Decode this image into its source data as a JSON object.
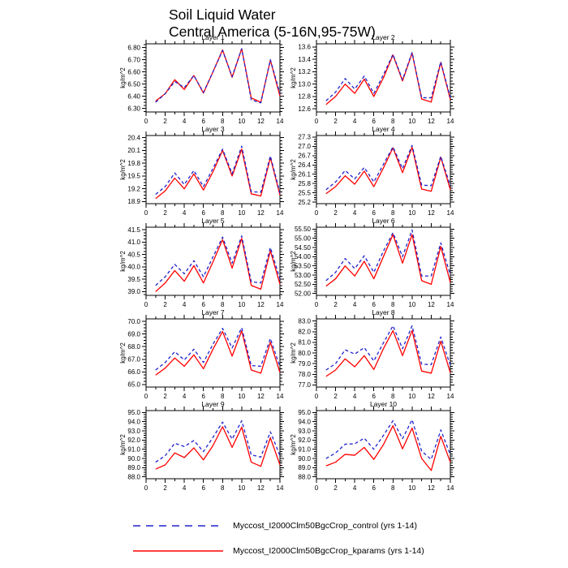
{
  "title": {
    "line1": "Soil Liquid Water",
    "line2": "Central America (5-16N,95-75W)"
  },
  "ylabel": "kg/m^2",
  "colors": {
    "control": "#2222cc",
    "kparams": "#ff0000"
  },
  "legend": [
    {
      "series": "control",
      "style": "dashed",
      "label": "Myccost_I2000Clm50BgcCrop_control (yrs 1-14)"
    },
    {
      "series": "kparams",
      "style": "solid",
      "label": "Myccost_I2000Clm50BgcCrop_kparams (yrs 1-14)"
    }
  ],
  "x_values": [
    1,
    2,
    3,
    4,
    5,
    6,
    7,
    8,
    9,
    10,
    11,
    12,
    13,
    14
  ],
  "xlim": [
    0,
    14
  ],
  "xticks": [
    0,
    2,
    4,
    6,
    8,
    10,
    12,
    14
  ],
  "chart_data": [
    {
      "type": "line",
      "title": "Layer 1",
      "ylabel": "kg/m^2",
      "ylim": [
        6.27,
        6.83
      ],
      "ytick_labels": [
        "6.30",
        "6.40",
        "6.50",
        "6.60",
        "6.70",
        "6.80"
      ],
      "series": [
        {
          "name": "control",
          "values": [
            6.35,
            6.42,
            6.52,
            6.47,
            6.57,
            6.43,
            6.6,
            6.775,
            6.56,
            6.79,
            6.37,
            6.345,
            6.7,
            6.42
          ]
        },
        {
          "name": "kparams",
          "values": [
            6.36,
            6.42,
            6.535,
            6.455,
            6.57,
            6.425,
            6.6,
            6.78,
            6.555,
            6.79,
            6.385,
            6.35,
            6.695,
            6.4
          ]
        }
      ]
    },
    {
      "type": "line",
      "title": "Layer 2",
      "ylabel": "kg/m^2",
      "ylim": [
        12.55,
        13.65
      ],
      "ytick_labels": [
        "12.6",
        "12.8",
        "13.0",
        "13.2",
        "13.4",
        "13.6"
      ],
      "series": [
        {
          "name": "control",
          "values": [
            12.73,
            12.87,
            13.09,
            12.92,
            13.13,
            12.85,
            13.15,
            13.48,
            13.07,
            13.51,
            12.78,
            12.78,
            13.36,
            12.78
          ]
        },
        {
          "name": "kparams",
          "values": [
            12.67,
            12.8,
            13.0,
            12.85,
            13.08,
            12.8,
            13.1,
            13.47,
            13.05,
            13.5,
            12.76,
            12.71,
            13.35,
            12.75
          ]
        }
      ]
    },
    {
      "type": "line",
      "title": "Layer 3",
      "ylabel": "kg/m^2",
      "ylim": [
        18.85,
        20.45
      ],
      "ytick_labels": [
        "18.9",
        "19.2",
        "19.5",
        "19.8",
        "20.1",
        "20.4"
      ],
      "series": [
        {
          "name": "control",
          "values": [
            19.07,
            19.25,
            19.57,
            19.3,
            19.63,
            19.25,
            19.68,
            20.13,
            19.55,
            20.2,
            19.13,
            19.12,
            19.97,
            19.1
          ]
        },
        {
          "name": "kparams",
          "values": [
            18.97,
            19.15,
            19.45,
            19.2,
            19.55,
            19.17,
            19.6,
            20.1,
            19.5,
            20.13,
            19.08,
            19.03,
            19.93,
            19.05
          ]
        }
      ]
    },
    {
      "type": "line",
      "title": "Layer 4",
      "ylabel": "kg/m^2",
      "ylim": [
        25.15,
        27.35
      ],
      "ytick_labels": [
        "25.2",
        "25.5",
        "25.8",
        "26.1",
        "26.4",
        "26.7",
        "27.0",
        "27.3"
      ],
      "series": [
        {
          "name": "control",
          "values": [
            25.6,
            25.85,
            26.22,
            25.95,
            26.32,
            25.85,
            26.42,
            26.98,
            26.28,
            27.03,
            25.75,
            25.73,
            26.68,
            25.72
          ]
        },
        {
          "name": "kparams",
          "values": [
            25.47,
            25.7,
            26.05,
            25.78,
            26.2,
            25.7,
            26.3,
            26.95,
            26.15,
            26.97,
            25.62,
            25.55,
            26.65,
            25.6
          ]
        }
      ]
    },
    {
      "type": "line",
      "title": "Layer 5",
      "ylabel": "kg/m^2",
      "ylim": [
        38.85,
        41.6
      ],
      "ytick_labels": [
        "39.0",
        "39.5",
        "40.0",
        "40.5",
        "41.0",
        "41.5"
      ],
      "series": [
        {
          "name": "control",
          "values": [
            39.25,
            39.6,
            40.1,
            39.72,
            40.25,
            39.6,
            40.4,
            41.2,
            40.15,
            41.25,
            39.4,
            39.35,
            40.78,
            39.5
          ]
        },
        {
          "name": "kparams",
          "values": [
            39.0,
            39.35,
            39.85,
            39.42,
            40.05,
            39.35,
            40.2,
            41.1,
            39.95,
            41.15,
            39.25,
            39.1,
            40.65,
            39.3
          ]
        }
      ]
    },
    {
      "type": "line",
      "title": "Layer 6",
      "ylabel": "kg/m^2",
      "ylim": [
        51.9,
        55.6
      ],
      "ytick_labels": [
        "52.00",
        "52.50",
        "53.00",
        "53.50",
        "54.00",
        "54.50",
        "55.00",
        "55.50"
      ],
      "series": [
        {
          "name": "control",
          "values": [
            52.7,
            53.15,
            53.9,
            53.35,
            54.05,
            53.15,
            54.3,
            55.3,
            54.0,
            55.45,
            52.95,
            52.95,
            54.75,
            53.0
          ]
        },
        {
          "name": "kparams",
          "values": [
            52.4,
            52.8,
            53.5,
            52.95,
            53.75,
            52.8,
            54.0,
            55.2,
            53.65,
            55.2,
            52.7,
            52.5,
            54.55,
            52.6
          ]
        }
      ]
    },
    {
      "type": "line",
      "title": "Layer 7",
      "ylabel": "kg/m^2",
      "ylim": [
        64.8,
        70.2
      ],
      "ytick_labels": [
        "65.0",
        "66.0",
        "67.0",
        "68.0",
        "69.0",
        "70.0"
      ],
      "series": [
        {
          "name": "control",
          "values": [
            66.15,
            66.75,
            67.6,
            66.95,
            67.8,
            66.75,
            68.2,
            69.45,
            67.9,
            69.5,
            66.5,
            66.45,
            68.65,
            66.4
          ]
        },
        {
          "name": "kparams",
          "values": [
            65.75,
            66.3,
            67.1,
            66.45,
            67.35,
            66.25,
            67.8,
            69.2,
            67.25,
            69.25,
            66.15,
            65.9,
            68.35,
            65.95
          ]
        }
      ]
    },
    {
      "type": "line",
      "title": "Layer 8",
      "ylabel": "kg/m^2",
      "ylim": [
        76.8,
        83.2
      ],
      "ytick_labels": [
        "77.0",
        "78.0",
        "79.0",
        "80.0",
        "81.0",
        "82.0",
        "83.0"
      ],
      "series": [
        {
          "name": "control",
          "values": [
            78.4,
            79.0,
            80.3,
            79.9,
            80.5,
            79.25,
            80.95,
            82.55,
            80.4,
            82.55,
            78.95,
            78.9,
            81.5,
            78.85
          ]
        },
        {
          "name": "kparams",
          "values": [
            77.8,
            78.4,
            79.45,
            78.7,
            79.75,
            78.45,
            80.4,
            82.1,
            79.75,
            82.1,
            78.3,
            78.1,
            81.1,
            78.15
          ]
        }
      ]
    },
    {
      "type": "line",
      "title": "Layer 9",
      "ylabel": "kg/m^2",
      "ylim": [
        87.8,
        95.2
      ],
      "ytick_labels": [
        "88.0",
        "89.0",
        "90.0",
        "91.0",
        "92.0",
        "93.0",
        "94.0",
        "95.0"
      ],
      "series": [
        {
          "name": "control",
          "values": [
            89.6,
            90.3,
            91.65,
            91.3,
            91.95,
            90.75,
            92.3,
            93.95,
            92.1,
            94.1,
            90.4,
            90.15,
            92.9,
            90.3
          ]
        },
        {
          "name": "kparams",
          "values": [
            88.85,
            89.3,
            90.6,
            90.1,
            91.15,
            89.85,
            91.4,
            93.45,
            91.2,
            93.4,
            89.6,
            89.15,
            92.25,
            89.3
          ]
        }
      ]
    },
    {
      "type": "line",
      "title": "Layer 10",
      "ylabel": "kg/m^2",
      "ylim": [
        87.8,
        95.2
      ],
      "ytick_labels": [
        "88.0",
        "89.0",
        "90.0",
        "91.0",
        "92.0",
        "93.0",
        "94.0",
        "95.0"
      ],
      "series": [
        {
          "name": "control",
          "values": [
            90.0,
            90.6,
            91.55,
            91.6,
            92.2,
            91.0,
            92.5,
            94.1,
            92.15,
            94.2,
            90.8,
            89.9,
            93.1,
            90.4
          ]
        },
        {
          "name": "kparams",
          "values": [
            89.2,
            89.6,
            90.45,
            90.35,
            91.2,
            89.9,
            91.5,
            93.55,
            91.05,
            93.3,
            90.0,
            88.7,
            92.4,
            89.6
          ]
        }
      ]
    }
  ]
}
